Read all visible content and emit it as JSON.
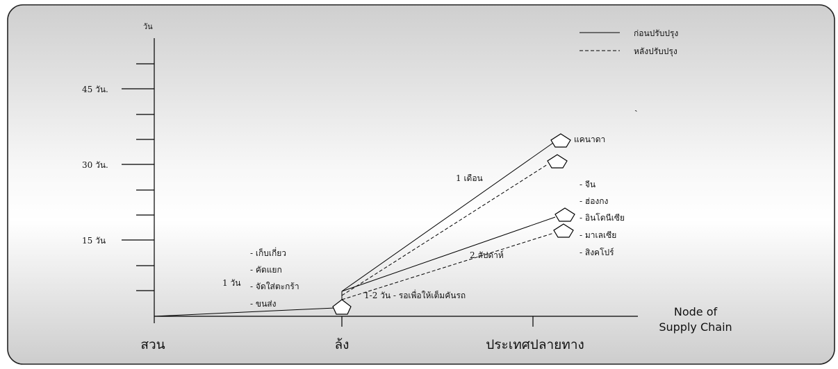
{
  "diagram": {
    "y_axis_unit": "วัน",
    "y_tick_labels": {
      "t45": "45 วัน.",
      "t30": "30 วัน.",
      "t15": "15 วัน"
    },
    "x_axis_title_line1": "Node of",
    "x_axis_title_line2": "Supply Chain",
    "nodes": {
      "garden": "สวน",
      "packing_house": "ล้ง",
      "destination_country": "ประเทศปลายทาง"
    },
    "legend": {
      "solid": "ก่อนปรับปรุง",
      "dashed": "หลังปรับปรุง"
    },
    "stray_mark": "ˏ",
    "stage1": {
      "duration": "1 วัน",
      "activities": [
        "- เก็บเกี่ยว",
        "- คัดแยก",
        "- จัดใส่ตะกร้า",
        "- ขนส่ง"
      ]
    },
    "stage2_wait": "1-2 วัน  - รอเพื่อให้เต็มคันรถ",
    "canada_duration": "1 เดือน",
    "canada_label": "แคนาดา",
    "asia_duration": "2 สัปดาห์",
    "asia_destinations": [
      "- จีน",
      "- ฮ่องกง",
      "- อินโดนีเซีย",
      "- มาเลเซีย",
      "- สิงคโปร์"
    ]
  }
}
